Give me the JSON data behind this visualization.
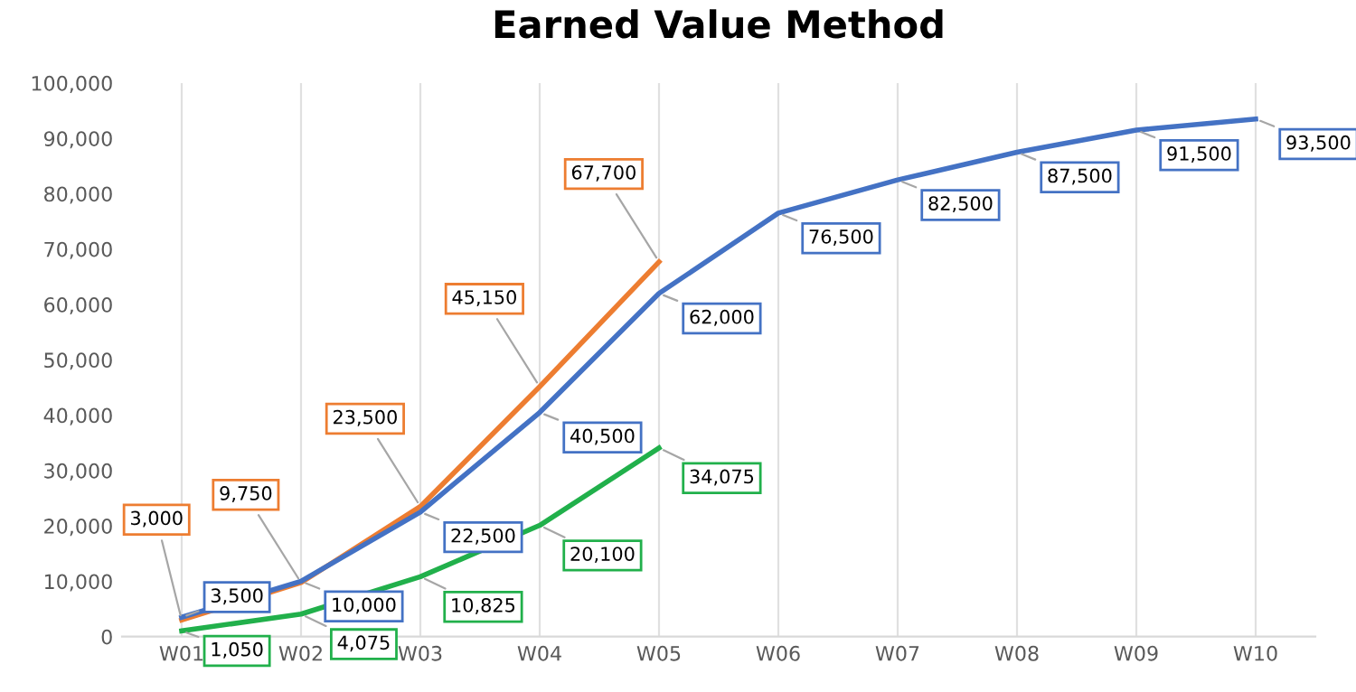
{
  "chart_data": {
    "type": "line",
    "title": "Earned Value Method",
    "categories": [
      "W01",
      "W02",
      "W03",
      "W04",
      "W05",
      "W06",
      "W07",
      "W08",
      "W09",
      "W10"
    ],
    "series": [
      {
        "color": "#ed7d31",
        "values": [
          3000,
          9750,
          23500,
          45150,
          67700,
          null,
          null,
          null,
          null,
          null
        ],
        "value_labels": [
          "3,000",
          "9,750",
          "23,500",
          "45,150",
          "67,700",
          null,
          null,
          null,
          null,
          null
        ]
      },
      {
        "color": "#4472c4",
        "values": [
          3500,
          10000,
          22500,
          40500,
          62000,
          76500,
          82500,
          87500,
          91500,
          93500
        ],
        "value_labels": [
          "3,500",
          "10,000",
          "22,500",
          "40,500",
          "62,000",
          "76,500",
          "82,500",
          "87,500",
          "91,500",
          "93,500"
        ]
      },
      {
        "color": "#21b04b",
        "values": [
          1050,
          4075,
          10825,
          20100,
          34075,
          null,
          null,
          null,
          null,
          null
        ],
        "value_labels": [
          "1,050",
          "4,075",
          "10,825",
          "20,100",
          "34,075",
          null,
          null,
          null,
          null,
          null
        ]
      }
    ],
    "ylim": [
      0,
      100000
    ],
    "yticks": [
      {
        "value": 0,
        "label": "0"
      },
      {
        "value": 10000,
        "label": "10,000"
      },
      {
        "value": 20000,
        "label": "20,000"
      },
      {
        "value": 30000,
        "label": "30,000"
      },
      {
        "value": 40000,
        "label": "40,000"
      },
      {
        "value": 50000,
        "label": "50,000"
      },
      {
        "value": 60000,
        "label": "60,000"
      },
      {
        "value": 70000,
        "label": "70,000"
      },
      {
        "value": 80000,
        "label": "80,000"
      },
      {
        "value": 90000,
        "label": "90,000"
      },
      {
        "value": 100000,
        "label": "100,000"
      }
    ],
    "grid": "x",
    "legend": false,
    "marker": "none",
    "line_style": "solid"
  }
}
